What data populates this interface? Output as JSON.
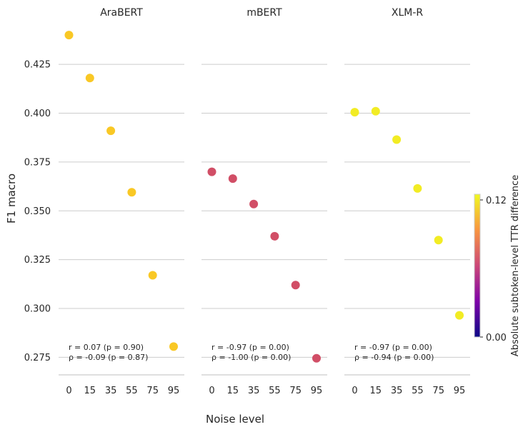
{
  "chart_data": {
    "type": "scatter",
    "xlabel": "Noise level",
    "ylabel": "F1 macro",
    "ylim": [
      0.266,
      0.447
    ],
    "yticks": [
      0.275,
      0.3,
      0.325,
      0.35,
      0.375,
      0.4,
      0.425
    ],
    "ytick_labels": [
      "0.275",
      "0.300",
      "0.325",
      "0.350",
      "0.375",
      "0.400",
      "0.425"
    ],
    "x_categories": [
      "0",
      "15",
      "35",
      "55",
      "75",
      "95"
    ],
    "grid": "horizontal",
    "colorbar": {
      "label": "Absolute subtoken-level TTR difference",
      "min": 0.0,
      "max": 0.125,
      "ticks": [
        0.0,
        0.12
      ],
      "tick_labels": [
        "0.00",
        "0.12"
      ],
      "colormap": "plasma"
    },
    "panels": [
      {
        "title": "AraBERT",
        "color_value": 0.119,
        "color": "#f9c825",
        "y": [
          0.44,
          0.418,
          0.391,
          0.3595,
          0.317,
          0.2805
        ],
        "annotation": [
          "r = 0.07 (p = 0.90)",
          "ρ = -0.09 (p = 0.87)"
        ]
      },
      {
        "title": "mBERT",
        "color_value": 0.065,
        "color": "#d14e66",
        "y": [
          0.37,
          0.3665,
          0.3535,
          0.337,
          0.312,
          0.2745
        ],
        "annotation": [
          "r = -0.97 (p = 0.00)",
          "ρ = -1.00 (p = 0.00)"
        ]
      },
      {
        "title": "XLM-R",
        "color_value": 0.124,
        "color": "#f2ec24",
        "y": [
          0.4005,
          0.401,
          0.3865,
          0.3615,
          0.335,
          0.2965
        ],
        "annotation": [
          "r = -0.97 (p = 0.00)",
          "ρ = -0.94 (p = 0.00)"
        ]
      }
    ]
  }
}
